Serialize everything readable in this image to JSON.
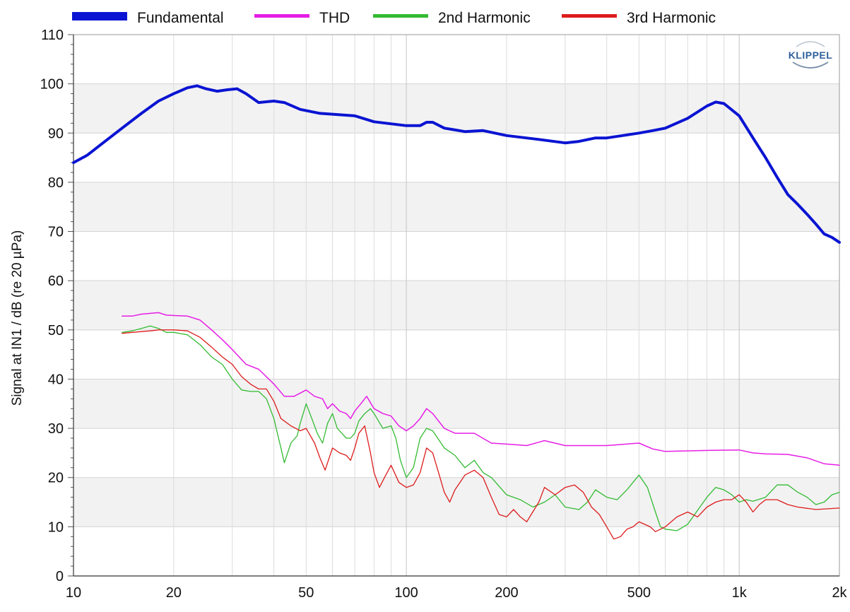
{
  "chart_data": {
    "type": "line",
    "title": "",
    "xlabel": "",
    "ylabel": "Signal at IN1 / dB (re 20 µPa)",
    "xscale": "log",
    "xlim": [
      10,
      2000
    ],
    "ylim": [
      0,
      110
    ],
    "grid": true,
    "legend_position": "top",
    "x_ticks": [
      {
        "value": 10,
        "label": "10"
      },
      {
        "value": 20,
        "label": "20"
      },
      {
        "value": 50,
        "label": "50"
      },
      {
        "value": 100,
        "label": "100"
      },
      {
        "value": 200,
        "label": "200"
      },
      {
        "value": 500,
        "label": "500"
      },
      {
        "value": 1000,
        "label": "1k"
      },
      {
        "value": 2000,
        "label": "2k"
      }
    ],
    "y_ticks": [
      0,
      10,
      20,
      30,
      40,
      50,
      60,
      70,
      80,
      90,
      100,
      110
    ],
    "logo_text": "KLIPPEL",
    "series": [
      {
        "name": "Fundamental",
        "color": "#0a14d2",
        "width": 4,
        "points": [
          [
            10,
            84
          ],
          [
            11,
            85.5
          ],
          [
            12,
            87.5
          ],
          [
            14,
            91
          ],
          [
            16,
            94
          ],
          [
            18,
            96.5
          ],
          [
            20,
            98
          ],
          [
            22,
            99.2
          ],
          [
            23.5,
            99.6
          ],
          [
            25,
            99
          ],
          [
            27,
            98.5
          ],
          [
            29,
            98.8
          ],
          [
            31,
            99
          ],
          [
            33,
            98
          ],
          [
            36,
            96.2
          ],
          [
            40,
            96.5
          ],
          [
            43,
            96.2
          ],
          [
            48,
            94.8
          ],
          [
            55,
            94
          ],
          [
            70,
            93.5
          ],
          [
            80,
            92.3
          ],
          [
            100,
            91.5
          ],
          [
            110,
            91.5
          ],
          [
            115,
            92.2
          ],
          [
            120,
            92.2
          ],
          [
            130,
            91
          ],
          [
            150,
            90.3
          ],
          [
            170,
            90.5
          ],
          [
            200,
            89.5
          ],
          [
            250,
            88.7
          ],
          [
            300,
            88
          ],
          [
            330,
            88.3
          ],
          [
            370,
            89
          ],
          [
            400,
            89
          ],
          [
            500,
            90
          ],
          [
            550,
            90.5
          ],
          [
            600,
            91
          ],
          [
            700,
            93
          ],
          [
            800,
            95.5
          ],
          [
            850,
            96.3
          ],
          [
            900,
            96
          ],
          [
            1000,
            93.5
          ],
          [
            1100,
            89
          ],
          [
            1200,
            85
          ],
          [
            1300,
            81
          ],
          [
            1400,
            77.5
          ],
          [
            1500,
            75.5
          ],
          [
            1600,
            73.5
          ],
          [
            1700,
            71.5
          ],
          [
            1800,
            69.5
          ],
          [
            1900,
            68.8
          ],
          [
            2000,
            67.8
          ]
        ]
      },
      {
        "name": "THD",
        "color": "#e61ee6",
        "width": 1.5,
        "points": [
          [
            14,
            52.8
          ],
          [
            15,
            52.8
          ],
          [
            16,
            53.2
          ],
          [
            18,
            53.5
          ],
          [
            19,
            53
          ],
          [
            22,
            52.8
          ],
          [
            24,
            52
          ],
          [
            26,
            50
          ],
          [
            28,
            48
          ],
          [
            30,
            46
          ],
          [
            33,
            43
          ],
          [
            36,
            42
          ],
          [
            40,
            39
          ],
          [
            43,
            36.5
          ],
          [
            46,
            36.5
          ],
          [
            50,
            37.8
          ],
          [
            53,
            36.5
          ],
          [
            56,
            36
          ],
          [
            58,
            34
          ],
          [
            60,
            35
          ],
          [
            63,
            33.5
          ],
          [
            66,
            33
          ],
          [
            68,
            32
          ],
          [
            70,
            33.5
          ],
          [
            73,
            35
          ],
          [
            76,
            36.5
          ],
          [
            80,
            34
          ],
          [
            85,
            33
          ],
          [
            90,
            32.5
          ],
          [
            95,
            30.5
          ],
          [
            100,
            29.5
          ],
          [
            105,
            30.5
          ],
          [
            110,
            32
          ],
          [
            115,
            34
          ],
          [
            120,
            33
          ],
          [
            130,
            30
          ],
          [
            140,
            29
          ],
          [
            160,
            29
          ],
          [
            180,
            27
          ],
          [
            200,
            26.8
          ],
          [
            230,
            26.5
          ],
          [
            260,
            27.5
          ],
          [
            300,
            26.5
          ],
          [
            400,
            26.5
          ],
          [
            500,
            27
          ],
          [
            550,
            25.8
          ],
          [
            600,
            25.3
          ],
          [
            800,
            25.5
          ],
          [
            1000,
            25.6
          ],
          [
            1100,
            25
          ],
          [
            1200,
            24.8
          ],
          [
            1400,
            24.7
          ],
          [
            1600,
            24
          ],
          [
            1800,
            22.8
          ],
          [
            2000,
            22.5
          ]
        ]
      },
      {
        "name": "2nd Harmonic",
        "color": "#33bb33",
        "width": 1.3,
        "points": [
          [
            14,
            49.5
          ],
          [
            15,
            49.8
          ],
          [
            16,
            50.3
          ],
          [
            17,
            50.8
          ],
          [
            18,
            50.3
          ],
          [
            19,
            49.5
          ],
          [
            20,
            49.5
          ],
          [
            22,
            49
          ],
          [
            24,
            47
          ],
          [
            26,
            44.5
          ],
          [
            28,
            43
          ],
          [
            30,
            40
          ],
          [
            32,
            37.8
          ],
          [
            34,
            37.5
          ],
          [
            36,
            37.5
          ],
          [
            38,
            36
          ],
          [
            40,
            32
          ],
          [
            42,
            26
          ],
          [
            43,
            23
          ],
          [
            45,
            27
          ],
          [
            47,
            28.5
          ],
          [
            48,
            31
          ],
          [
            50,
            35
          ],
          [
            52,
            32
          ],
          [
            54,
            29
          ],
          [
            56,
            27
          ],
          [
            58,
            31
          ],
          [
            60,
            33
          ],
          [
            62,
            30
          ],
          [
            64,
            29
          ],
          [
            66,
            28
          ],
          [
            68,
            28
          ],
          [
            70,
            29
          ],
          [
            72,
            31.5
          ],
          [
            75,
            33
          ],
          [
            78,
            34
          ],
          [
            80,
            33
          ],
          [
            85,
            30
          ],
          [
            90,
            30.5
          ],
          [
            93,
            28
          ],
          [
            96,
            23.5
          ],
          [
            100,
            20
          ],
          [
            105,
            22
          ],
          [
            110,
            28
          ],
          [
            115,
            30
          ],
          [
            120,
            29.5
          ],
          [
            130,
            26
          ],
          [
            140,
            24.5
          ],
          [
            150,
            22
          ],
          [
            160,
            23.5
          ],
          [
            170,
            21
          ],
          [
            180,
            20
          ],
          [
            200,
            16.5
          ],
          [
            220,
            15.5
          ],
          [
            240,
            14
          ],
          [
            260,
            15
          ],
          [
            280,
            16.5
          ],
          [
            300,
            14
          ],
          [
            330,
            13.5
          ],
          [
            350,
            15
          ],
          [
            370,
            17.5
          ],
          [
            400,
            16
          ],
          [
            430,
            15.5
          ],
          [
            460,
            17.5
          ],
          [
            500,
            20.5
          ],
          [
            530,
            18
          ],
          [
            560,
            13
          ],
          [
            580,
            10
          ],
          [
            600,
            9.5
          ],
          [
            650,
            9.2
          ],
          [
            700,
            10.5
          ],
          [
            800,
            16
          ],
          [
            850,
            18
          ],
          [
            900,
            17.5
          ],
          [
            950,
            16.5
          ],
          [
            1000,
            15
          ],
          [
            1050,
            15.5
          ],
          [
            1100,
            15.2
          ],
          [
            1200,
            16
          ],
          [
            1300,
            18.5
          ],
          [
            1400,
            18.5
          ],
          [
            1500,
            17
          ],
          [
            1600,
            16
          ],
          [
            1700,
            14.5
          ],
          [
            1800,
            15
          ],
          [
            1900,
            16.5
          ],
          [
            2000,
            17
          ]
        ]
      },
      {
        "name": "3rd Harmonic",
        "color": "#dd1c1c",
        "width": 1.3,
        "points": [
          [
            14,
            49.3
          ],
          [
            15,
            49.5
          ],
          [
            17,
            49.8
          ],
          [
            18,
            50
          ],
          [
            20,
            50
          ],
          [
            22,
            49.8
          ],
          [
            24,
            48.5
          ],
          [
            26,
            46.5
          ],
          [
            28,
            44.5
          ],
          [
            30,
            43
          ],
          [
            32,
            40.5
          ],
          [
            34,
            39
          ],
          [
            36,
            38
          ],
          [
            38,
            38
          ],
          [
            40,
            35.5
          ],
          [
            42,
            32
          ],
          [
            45,
            30.5
          ],
          [
            48,
            29.5
          ],
          [
            50,
            30
          ],
          [
            53,
            27
          ],
          [
            55,
            24
          ],
          [
            57,
            21.5
          ],
          [
            60,
            26
          ],
          [
            63,
            25
          ],
          [
            66,
            24.5
          ],
          [
            68,
            23.5
          ],
          [
            70,
            26
          ],
          [
            72,
            29
          ],
          [
            75,
            30.5
          ],
          [
            78,
            25
          ],
          [
            80,
            21
          ],
          [
            83,
            18
          ],
          [
            86,
            20
          ],
          [
            90,
            22.5
          ],
          [
            95,
            19
          ],
          [
            100,
            18
          ],
          [
            105,
            18.5
          ],
          [
            110,
            21
          ],
          [
            115,
            26
          ],
          [
            120,
            25
          ],
          [
            125,
            21
          ],
          [
            130,
            17
          ],
          [
            135,
            15
          ],
          [
            140,
            17.5
          ],
          [
            150,
            20.5
          ],
          [
            160,
            21.5
          ],
          [
            170,
            20
          ],
          [
            180,
            16
          ],
          [
            190,
            12.5
          ],
          [
            200,
            12
          ],
          [
            210,
            13.5
          ],
          [
            220,
            12
          ],
          [
            230,
            11
          ],
          [
            250,
            15
          ],
          [
            260,
            18
          ],
          [
            280,
            16.5
          ],
          [
            300,
            18
          ],
          [
            320,
            18.5
          ],
          [
            340,
            17
          ],
          [
            360,
            14
          ],
          [
            380,
            12.5
          ],
          [
            400,
            10
          ],
          [
            420,
            7.5
          ],
          [
            440,
            8
          ],
          [
            460,
            9.5
          ],
          [
            480,
            10
          ],
          [
            500,
            11
          ],
          [
            540,
            10
          ],
          [
            560,
            9
          ],
          [
            600,
            10
          ],
          [
            650,
            12
          ],
          [
            700,
            13
          ],
          [
            750,
            12
          ],
          [
            800,
            14
          ],
          [
            850,
            15
          ],
          [
            900,
            15.5
          ],
          [
            950,
            15.5
          ],
          [
            1000,
            16.5
          ],
          [
            1050,
            15
          ],
          [
            1100,
            13
          ],
          [
            1150,
            14.5
          ],
          [
            1200,
            15.5
          ],
          [
            1300,
            15.5
          ],
          [
            1400,
            14.5
          ],
          [
            1500,
            14
          ],
          [
            1700,
            13.5
          ],
          [
            2000,
            13.8
          ]
        ]
      }
    ]
  }
}
